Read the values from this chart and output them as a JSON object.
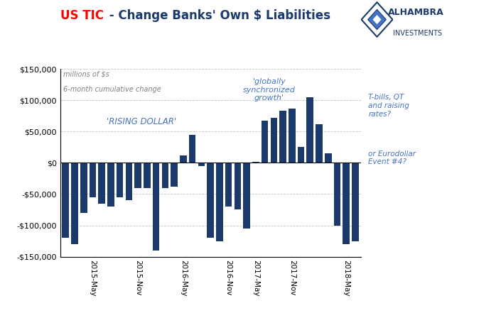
{
  "title_red": "US TIC",
  "title_blue": " - Change Banks' Own $ Liabilities",
  "subtitle_line1": "millions of $s",
  "subtitle_line2": "6-month cumulative change",
  "annotation1": "'RISING DOLLAR'",
  "annotation2": "'globally\nsynchronized\ngrowth'",
  "annotation3": "T-bills, QT\nand raising\nrates?",
  "annotation4": "or Eurodollar\nEvent #4?",
  "bar_color": "#1B3A6B",
  "background_color": "#FFFFFF",
  "grid_color": "#AAAAAA",
  "ylim": [
    -150000,
    150000
  ],
  "yticks": [
    -150000,
    -100000,
    -50000,
    0,
    50000,
    100000,
    150000
  ],
  "values": [
    -120000,
    -130000,
    -80000,
    -55000,
    -65000,
    -70000,
    -55000,
    -60000,
    -40000,
    -40000,
    -140000,
    -40000,
    -38000,
    12000,
    45000,
    -5000,
    -120000,
    -125000,
    -70000,
    -75000,
    -105000,
    2000,
    67000,
    72000,
    83000,
    87000,
    25000,
    105000,
    62000,
    15000,
    -100000,
    -130000,
    -125000
  ],
  "x_tick_labels": [
    "2015-May",
    "2015-Nov",
    "2016-May",
    "2016-Nov",
    "2017-May",
    "2017-Nov",
    "2018-May"
  ],
  "x_tick_positions": [
    3,
    8,
    13,
    18,
    21,
    25,
    31
  ]
}
